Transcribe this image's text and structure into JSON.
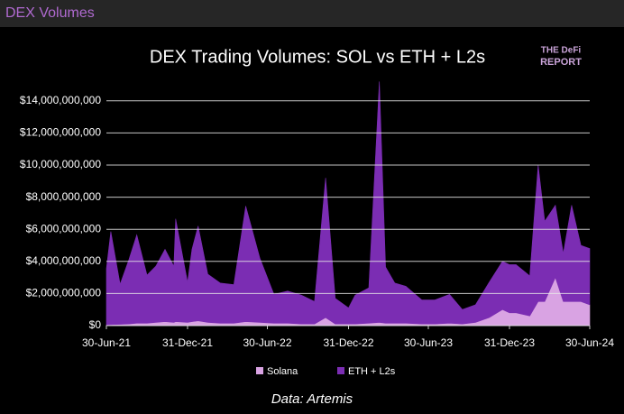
{
  "page_header": "DEX Volumes",
  "chart_data": {
    "type": "stacked_area",
    "title": "DEX Trading Volumes: SOL vs ETH + L2s",
    "logo": [
      "THE DeFi",
      "REPORT"
    ],
    "source": "Data: Artemis",
    "x": [
      "2021-06-30",
      "2021-07-10",
      "2021-07-31",
      "2021-08-20",
      "2021-09-07",
      "2021-09-30",
      "2021-10-20",
      "2021-11-10",
      "2021-11-30",
      "2021-12-04",
      "2021-12-31",
      "2022-01-10",
      "2022-01-24",
      "2022-02-15",
      "2022-03-15",
      "2022-04-15",
      "2022-05-12",
      "2022-06-13",
      "2022-07-15",
      "2022-08-15",
      "2022-09-15",
      "2022-10-15",
      "2022-11-09",
      "2022-12-01",
      "2022-12-31",
      "2023-01-15",
      "2023-02-15",
      "2023-03-11",
      "2023-03-25",
      "2023-04-15",
      "2023-05-10",
      "2023-06-15",
      "2023-07-15",
      "2023-08-17",
      "2023-09-15",
      "2023-10-15",
      "2023-11-15",
      "2023-12-15",
      "2023-12-31",
      "2024-01-15",
      "2024-02-15",
      "2024-03-05",
      "2024-03-20",
      "2024-04-13",
      "2024-05-01",
      "2024-05-20",
      "2024-06-10",
      "2024-06-30"
    ],
    "series": [
      {
        "name": "Solana",
        "color": "#d9a3e3",
        "values": [
          50000000,
          60000000,
          80000000,
          100000000,
          150000000,
          150000000,
          200000000,
          250000000,
          200000000,
          250000000,
          200000000,
          250000000,
          300000000,
          200000000,
          150000000,
          150000000,
          250000000,
          200000000,
          150000000,
          150000000,
          100000000,
          100000000,
          500000000,
          100000000,
          100000000,
          100000000,
          150000000,
          200000000,
          150000000,
          150000000,
          150000000,
          100000000,
          100000000,
          150000000,
          100000000,
          200000000,
          500000000,
          1000000000,
          800000000,
          800000000,
          600000000,
          1500000000,
          1500000000,
          3000000000,
          1500000000,
          1500000000,
          1500000000,
          1300000000
        ]
      },
      {
        "name": "ETH + L2s",
        "color": "#7b2db3",
        "values": [
          3500000000,
          5800000000,
          2500000000,
          4000000000,
          5500000000,
          3000000000,
          3500000000,
          4500000000,
          3500000000,
          6400000000,
          2500000000,
          4500000000,
          5900000000,
          3000000000,
          2500000000,
          2400000000,
          7200000000,
          4000000000,
          1800000000,
          2000000000,
          1800000000,
          1400000000,
          8700000000,
          1600000000,
          1000000000,
          1800000000,
          2200000000,
          15000000000,
          3500000000,
          2500000000,
          2300000000,
          1500000000,
          1500000000,
          1800000000,
          900000000,
          1100000000,
          2200000000,
          3000000000,
          3000000000,
          3000000000,
          2500000000,
          8500000000,
          5000000000,
          4500000000,
          3000000000,
          6000000000,
          3500000000,
          3500000000
        ]
      }
    ],
    "xlim": [
      "2021-06-30",
      "2024-06-30"
    ],
    "xticks": [
      {
        "value": "2021-06-30",
        "label": "30-Jun-21"
      },
      {
        "value": "2021-12-31",
        "label": "31-Dec-21"
      },
      {
        "value": "2022-06-30",
        "label": "30-Jun-22"
      },
      {
        "value": "2022-12-31",
        "label": "31-Dec-22"
      },
      {
        "value": "2023-06-30",
        "label": "30-Jun-23"
      },
      {
        "value": "2023-12-31",
        "label": "31-Dec-23"
      },
      {
        "value": "2024-06-30",
        "label": "30-Jun-24"
      }
    ],
    "ylim": [
      0,
      15000000000
    ],
    "yticks": [
      {
        "value": 0,
        "label": "$0"
      },
      {
        "value": 2000000000,
        "label": "$2,000,000,000"
      },
      {
        "value": 4000000000,
        "label": "$4,000,000,000"
      },
      {
        "value": 6000000000,
        "label": "$6,000,000,000"
      },
      {
        "value": 8000000000,
        "label": "$8,000,000,000"
      },
      {
        "value": 10000000000,
        "label": "$10,000,000,000"
      },
      {
        "value": 12000000000,
        "label": "$12,000,000,000"
      },
      {
        "value": 14000000000,
        "label": "$14,000,000,000"
      }
    ],
    "grid": true
  }
}
